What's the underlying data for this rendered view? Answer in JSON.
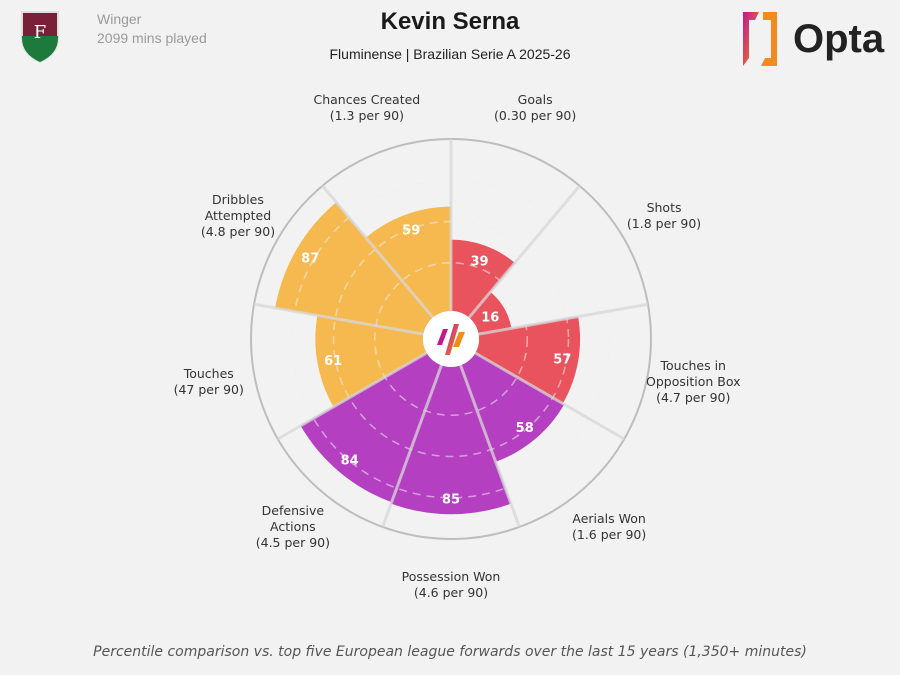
{
  "header": {
    "position": "Winger",
    "minutes": "2099 mins played",
    "player": "Kevin Serna",
    "subtitle": "Fluminense | Brazilian Serie A 2025-26",
    "brand": "Opta"
  },
  "footer": "Percentile comparison vs. top five European league forwards over the last 15 years (1,350+ minutes)",
  "colors": {
    "attacking": "#e9535d",
    "possession": "#f5b94f",
    "defending": "#b43fc0",
    "background": "#f2f2f2"
  },
  "chart_data": {
    "type": "pie",
    "subtype": "polar-area percentile",
    "rlim": [
      0,
      100
    ],
    "categories": [
      {
        "name": "Goals",
        "name_lines": [
          "Goals"
        ],
        "per90": "(0.30 per 90)",
        "value": 39,
        "group": "attacking"
      },
      {
        "name": "Shots",
        "name_lines": [
          "Shots"
        ],
        "per90": "(1.8 per 90)",
        "value": 16,
        "group": "attacking"
      },
      {
        "name": "Touches in Opposition Box",
        "name_lines": [
          "Touches in",
          "Opposition Box"
        ],
        "per90": "(4.7 per 90)",
        "value": 57,
        "group": "attacking"
      },
      {
        "name": "Aerials Won",
        "name_lines": [
          "Aerials Won"
        ],
        "per90": "(1.6 per 90)",
        "value": 58,
        "group": "defending"
      },
      {
        "name": "Possession Won",
        "name_lines": [
          "Possession Won"
        ],
        "per90": "(4.6 per 90)",
        "value": 85,
        "group": "defending"
      },
      {
        "name": "Defensive Actions",
        "name_lines": [
          "Defensive",
          "Actions"
        ],
        "per90": "(4.5 per 90)",
        "value": 84,
        "group": "defending"
      },
      {
        "name": "Touches",
        "name_lines": [
          "Touches"
        ],
        "per90": "(47 per 90)",
        "value": 61,
        "group": "possession"
      },
      {
        "name": "Dribbles Attempted",
        "name_lines": [
          "Dribbles",
          "Attempted"
        ],
        "per90": "(4.8 per 90)",
        "value": 87,
        "group": "possession"
      },
      {
        "name": "Chances Created",
        "name_lines": [
          "Chances Created"
        ],
        "per90": "(1.3 per 90)",
        "value": 59,
        "group": "possession"
      }
    ]
  }
}
